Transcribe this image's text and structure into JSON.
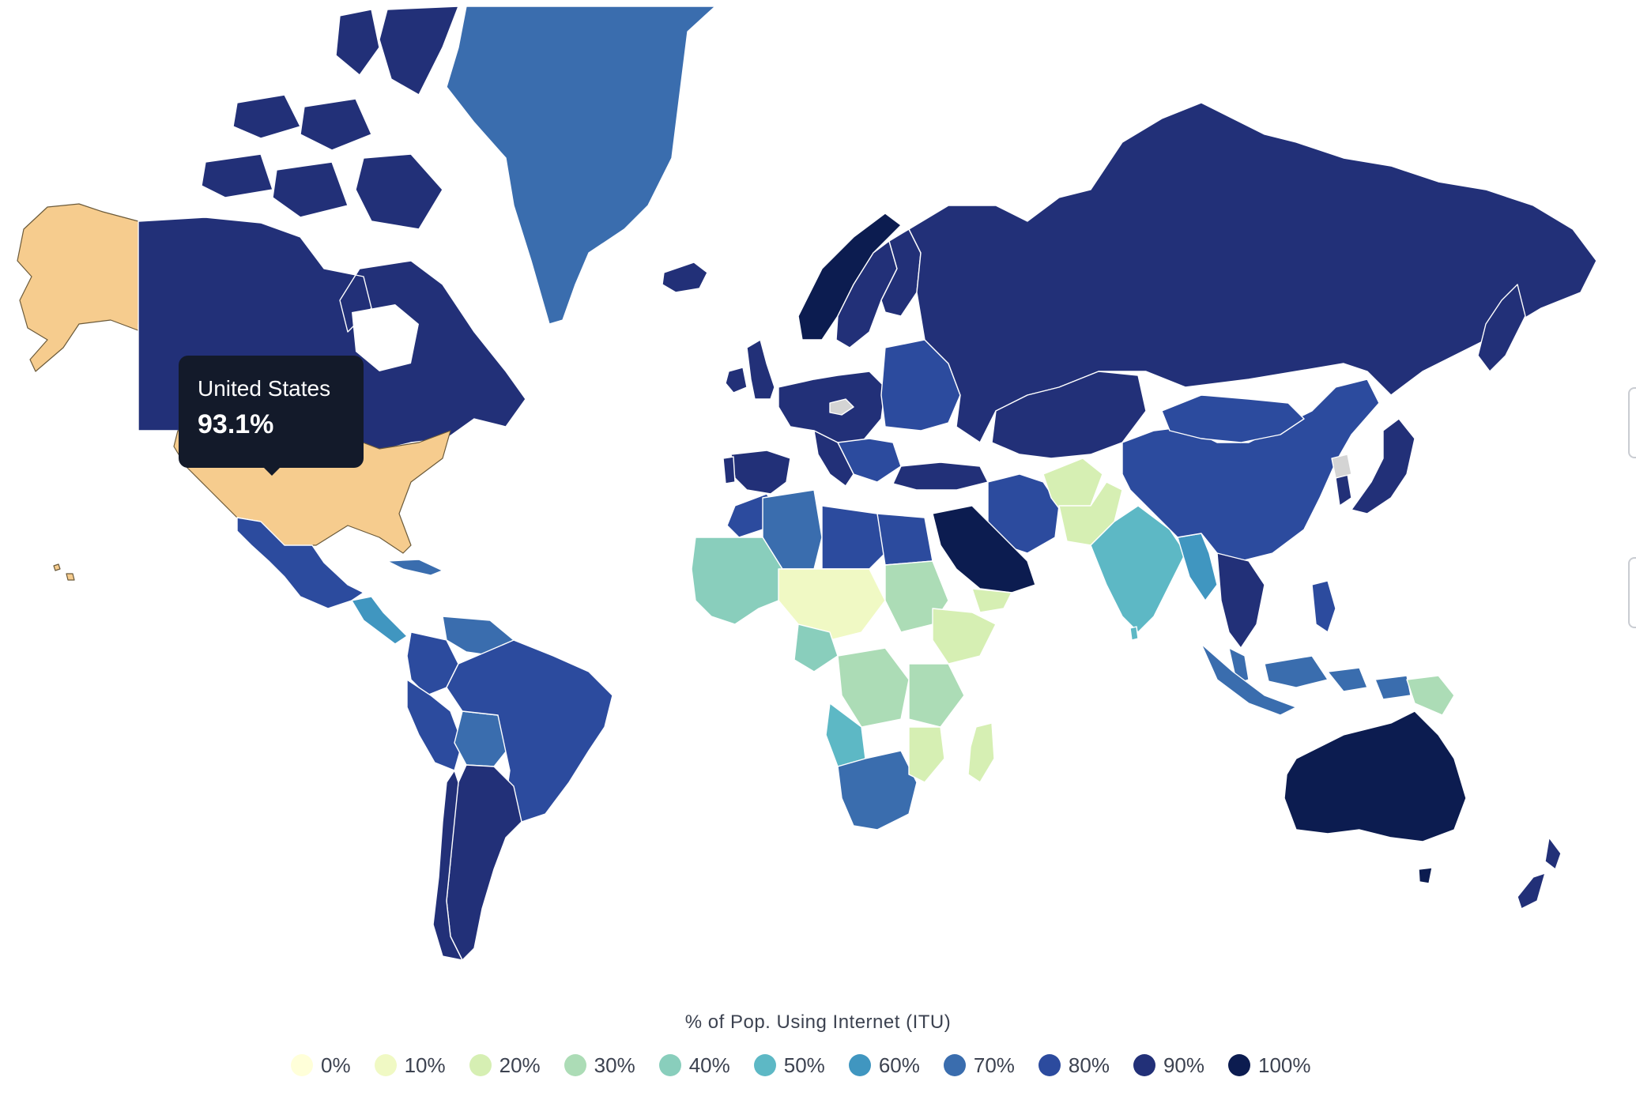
{
  "tooltip": {
    "country": "United States",
    "value": "93.1%"
  },
  "legend": {
    "title": "% of Pop. Using Internet (ITU)",
    "items": [
      {
        "label": "0%",
        "color": "#ffffd9"
      },
      {
        "label": "10%",
        "color": "#f0f9c4"
      },
      {
        "label": "20%",
        "color": "#d6efb3"
      },
      {
        "label": "30%",
        "color": "#acdcb6"
      },
      {
        "label": "40%",
        "color": "#89cebc"
      },
      {
        "label": "50%",
        "color": "#5db8c5"
      },
      {
        "label": "60%",
        "color": "#4096c0"
      },
      {
        "label": "70%",
        "color": "#3a6dae"
      },
      {
        "label": "80%",
        "color": "#2c4b9e"
      },
      {
        "label": "90%",
        "color": "#223078"
      },
      {
        "label": "100%",
        "color": "#0c1c50"
      }
    ]
  },
  "colors": {
    "highlight": "#f6cc8e",
    "no_data": "#d4d4d4",
    "tooltip_bg": "#131a2a"
  }
}
